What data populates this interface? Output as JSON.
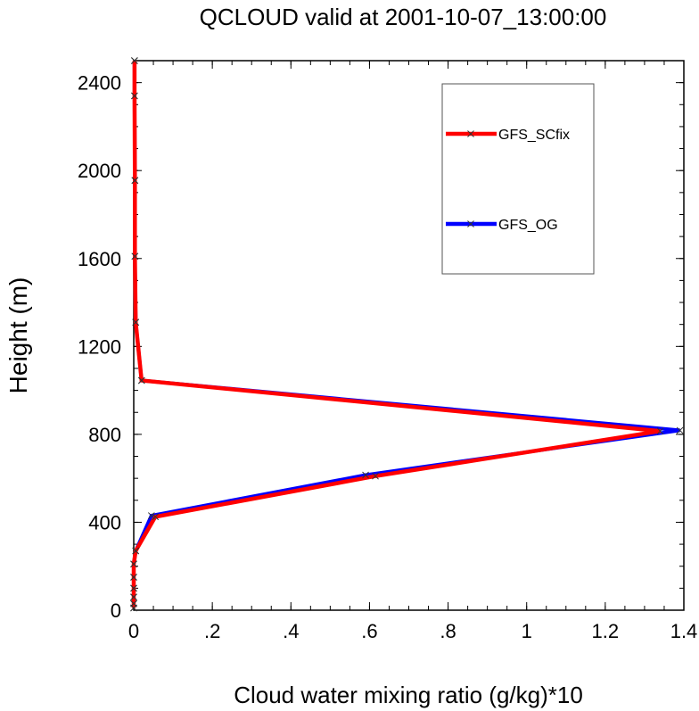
{
  "chart_data": {
    "type": "line",
    "title": "QCLOUD valid at 2001-10-07_13:00:00",
    "xlabel": "Cloud water mixing ratio (g/kg)*10",
    "ylabel": "Height (m)",
    "xlim": [
      0,
      1.4
    ],
    "ylim": [
      0,
      2500
    ],
    "x_ticks": [
      {
        "value": 0,
        "label": "0"
      },
      {
        "value": 0.2,
        "label": ".2"
      },
      {
        "value": 0.4,
        "label": ".4"
      },
      {
        "value": 0.6,
        "label": ".6"
      },
      {
        "value": 0.8,
        "label": ".8"
      },
      {
        "value": 1.0,
        "label": "1"
      },
      {
        "value": 1.2,
        "label": "1.2"
      },
      {
        "value": 1.4,
        "label": "1.4"
      }
    ],
    "y_ticks": [
      {
        "value": 0,
        "label": "0"
      },
      {
        "value": 400,
        "label": "400"
      },
      {
        "value": 800,
        "label": "800"
      },
      {
        "value": 1200,
        "label": "1200"
      },
      {
        "value": 1600,
        "label": "1600"
      },
      {
        "value": 2000,
        "label": "2000"
      },
      {
        "value": 2400,
        "label": "2400"
      }
    ],
    "grid": false,
    "legend_position": "top-right",
    "series": [
      {
        "name": "GFS_OG",
        "color": "#0000ff",
        "marker": "x",
        "points": [
          {
            "x": 0,
            "y": 10
          },
          {
            "x": 0,
            "y": 30
          },
          {
            "x": 0,
            "y": 60
          },
          {
            "x": 0,
            "y": 100
          },
          {
            "x": 0,
            "y": 150
          },
          {
            "x": 0,
            "y": 210
          },
          {
            "x": 0.005,
            "y": 270
          },
          {
            "x": 0.045,
            "y": 430
          },
          {
            "x": 0.59,
            "y": 615
          },
          {
            "x": 1.39,
            "y": 818
          },
          {
            "x": 0.02,
            "y": 1045
          },
          {
            "x": 0.005,
            "y": 1310
          },
          {
            "x": 0.003,
            "y": 1610
          },
          {
            "x": 0.003,
            "y": 1955
          },
          {
            "x": 0.002,
            "y": 2340
          },
          {
            "x": 0.002,
            "y": 2500
          }
        ]
      },
      {
        "name": "GFS_SCfix",
        "color": "#ff0000",
        "marker": "x",
        "points": [
          {
            "x": 0,
            "y": 10
          },
          {
            "x": 0,
            "y": 30
          },
          {
            "x": 0,
            "y": 60
          },
          {
            "x": 0,
            "y": 100
          },
          {
            "x": 0,
            "y": 150
          },
          {
            "x": 0,
            "y": 210
          },
          {
            "x": 0.005,
            "y": 270
          },
          {
            "x": 0.055,
            "y": 425
          },
          {
            "x": 0.615,
            "y": 610
          },
          {
            "x": 1.34,
            "y": 815
          },
          {
            "x": 0.02,
            "y": 1045
          },
          {
            "x": 0.005,
            "y": 1310
          },
          {
            "x": 0.003,
            "y": 1610
          },
          {
            "x": 0.003,
            "y": 1955
          },
          {
            "x": 0.002,
            "y": 2340
          },
          {
            "x": 0.002,
            "y": 2500
          }
        ]
      }
    ],
    "legend": [
      {
        "series": "GFS_SCfix",
        "label": "GFS_SCfix"
      },
      {
        "series": "GFS_OG",
        "label": "GFS_OG"
      }
    ]
  }
}
